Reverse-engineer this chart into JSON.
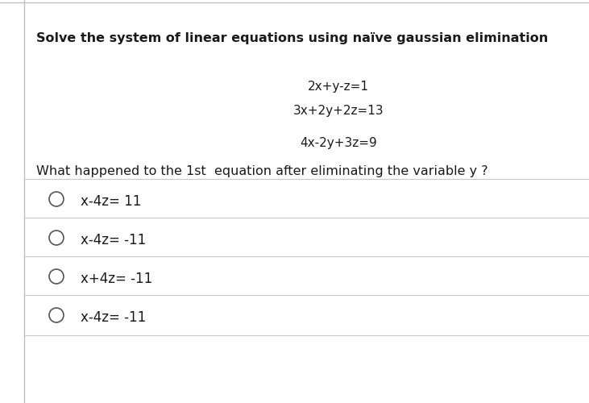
{
  "title": "Solve the system of linear equations using naïve gaussian elimination",
  "equations": [
    "2x+y-z=1",
    "3x+2y+2z=13",
    "4x-2y+3z=9"
  ],
  "question": "What happened to the 1st  equation after eliminating the variable y ?",
  "options": [
    "x-4z= 11",
    "x-4z= -11",
    "x+4z= -11",
    "x-4z= -11"
  ],
  "bg_color": "#ffffff",
  "border_color": "#c0c0c0",
  "text_color": "#1a1a1a",
  "line_color": "#c8c8c8",
  "title_fontsize": 11.5,
  "question_fontsize": 11.5,
  "option_fontsize": 12,
  "eq_fontsize": 11
}
